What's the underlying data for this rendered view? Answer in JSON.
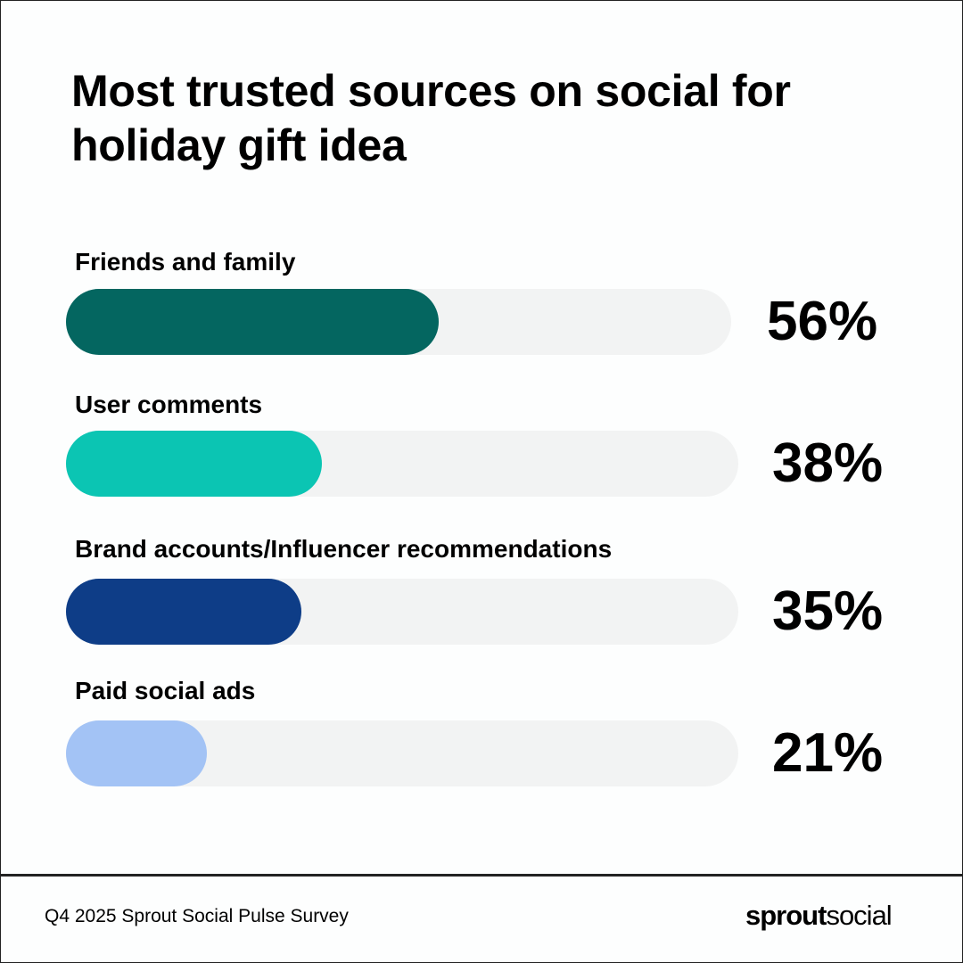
{
  "chart_data": {
    "type": "bar",
    "orientation": "horizontal",
    "title": "Most trusted sources on social for holiday gift idea",
    "categories": [
      "Friends and family",
      "User comments",
      "Brand accounts/Influencer recommendations",
      "Paid social ads"
    ],
    "values": [
      56,
      38,
      35,
      21
    ],
    "value_labels": [
      "56%",
      "38%",
      "35%",
      "21%"
    ],
    "colors": [
      "#046660",
      "#0bc5b3",
      "#0e3d87",
      "#a3c3f5"
    ],
    "track_color": "#f2f3f3",
    "xlim": [
      0,
      100
    ],
    "xlabel": "",
    "ylabel": ""
  },
  "footer": {
    "source": "Q4 2025 Sprout Social Pulse Survey",
    "logo_bold": "sprout",
    "logo_light": "social"
  }
}
